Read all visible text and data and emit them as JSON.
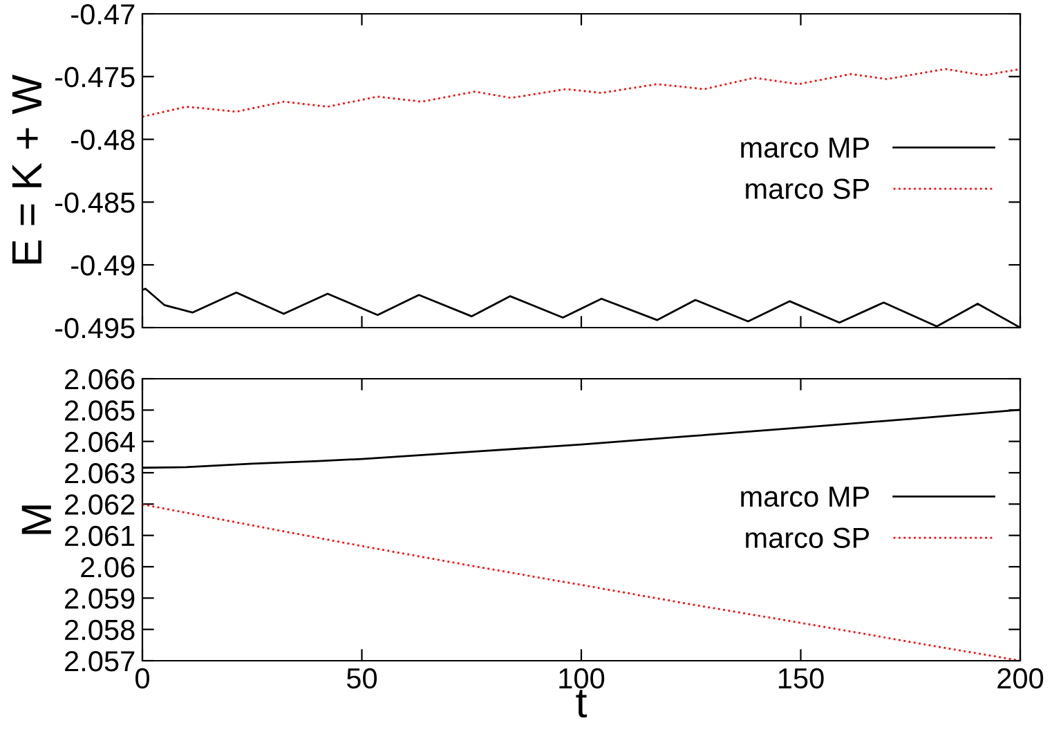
{
  "chart_data": [
    {
      "type": "line",
      "ylabel": "E = K + W",
      "xlim": [
        0,
        200
      ],
      "ylim": [
        -0.495,
        -0.47
      ],
      "xticks": [
        0,
        50,
        100,
        150,
        200
      ],
      "yticks": [
        -0.495,
        -0.49,
        -0.485,
        -0.48,
        -0.475,
        -0.47
      ],
      "tick_labels": "y",
      "grid": false,
      "legend": "right",
      "series": [
        {
          "name": "marco MP",
          "color": "#000000",
          "line_style": "solid",
          "x": [
            0,
            0.7,
            5,
            11.4,
            21.4,
            32.2,
            42.2,
            53.6,
            63,
            75,
            83.8,
            95.8,
            104.6,
            117.3,
            126,
            138,
            147.5,
            158.8,
            168.9,
            181,
            190.3,
            200
          ],
          "values": [
            -0.492,
            -0.4919,
            -0.4932,
            -0.4938,
            -0.4922,
            -0.4939,
            -0.4923,
            -0.494,
            -0.4924,
            -0.4941,
            -0.4925,
            -0.4942,
            -0.4927,
            -0.4944,
            -0.4928,
            -0.4945,
            -0.4929,
            -0.4946,
            -0.493,
            -0.4949,
            -0.4931,
            -0.495
          ]
        },
        {
          "name": "marco SP",
          "color": "#ff0000",
          "line_style": "dotted",
          "x": [
            0,
            10,
            21.4,
            32.2,
            42.2,
            53.6,
            63.7,
            75.7,
            84,
            96.5,
            104.6,
            117.3,
            128,
            139.4,
            149.5,
            161.5,
            169.6,
            183,
            191.7,
            200
          ],
          "values": [
            -0.4782,
            -0.4774,
            -0.4778,
            -0.477,
            -0.4774,
            -0.4766,
            -0.477,
            -0.4762,
            -0.4767,
            -0.476,
            -0.4763,
            -0.4756,
            -0.476,
            -0.4751,
            -0.4756,
            -0.4748,
            -0.4752,
            -0.4744,
            -0.4749,
            -0.4744
          ]
        }
      ]
    },
    {
      "type": "line",
      "xlabel": "t",
      "ylabel": "M",
      "xlim": [
        0,
        200
      ],
      "ylim": [
        2.057,
        2.066
      ],
      "xticks": [
        0,
        50,
        100,
        150,
        200
      ],
      "yticks": [
        2.057,
        2.058,
        2.059,
        2.06,
        2.061,
        2.062,
        2.063,
        2.064,
        2.065,
        2.066
      ],
      "grid": false,
      "legend": "right",
      "series": [
        {
          "name": "marco MP",
          "color": "#000000",
          "line_style": "solid",
          "x": [
            0,
            10,
            25,
            40,
            50,
            75,
            100,
            125,
            150,
            175,
            200
          ],
          "values": [
            2.06316,
            2.06318,
            2.06329,
            2.06337,
            2.06344,
            2.06367,
            2.0639,
            2.06417,
            2.06444,
            2.06472,
            2.06501
          ]
        },
        {
          "name": "marco SP",
          "color": "#ff0000",
          "line_style": "dotted",
          "x": [
            0,
            25,
            50,
            75,
            100,
            125,
            150,
            175,
            200
          ],
          "values": [
            2.06199,
            2.06132,
            2.06066,
            2.06003,
            2.05942,
            2.0588,
            2.05821,
            2.0576,
            2.057
          ]
        }
      ]
    }
  ]
}
